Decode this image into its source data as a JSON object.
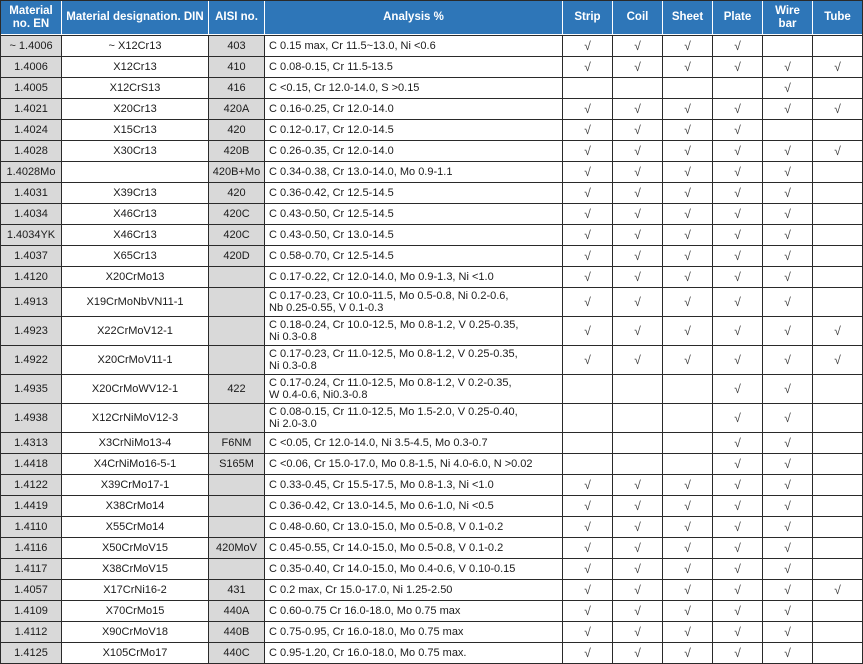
{
  "colors": {
    "header_bg": "#2e76b8",
    "header_text": "#ffffff",
    "gray_cell": "#d9d9d9",
    "border": "#2a2a2a",
    "check_color": "#3d3d3d"
  },
  "table": {
    "check_mark": "√",
    "columns": [
      {
        "slug": "material-no-en",
        "label": "Material no. EN"
      },
      {
        "slug": "designation-din",
        "label": "Material designation. DIN"
      },
      {
        "slug": "aisi-no",
        "label": "AISI no."
      },
      {
        "slug": "analysis",
        "label": "Analysis %"
      },
      {
        "slug": "strip",
        "label": "Strip"
      },
      {
        "slug": "coil",
        "label": "Coil"
      },
      {
        "slug": "sheet",
        "label": "Sheet"
      },
      {
        "slug": "plate",
        "label": "Plate"
      },
      {
        "slug": "wire-bar",
        "label": "Wire bar"
      },
      {
        "slug": "tube",
        "label": "Tube"
      }
    ],
    "rows": [
      {
        "en": "~ 1.4006",
        "din": "~ X12Cr13",
        "aisi": "403",
        "analysis": "C 0.15 max, Cr 11.5~13.0, Ni <0.6",
        "forms": [
          1,
          1,
          1,
          1,
          0,
          0
        ]
      },
      {
        "en": "1.4006",
        "din": "X12Cr13",
        "aisi": "410",
        "analysis": "C 0.08-0.15, Cr 11.5-13.5",
        "forms": [
          1,
          1,
          1,
          1,
          1,
          1
        ]
      },
      {
        "en": "1.4005",
        "din": "X12CrS13",
        "aisi": "416",
        "analysis": "C <0.15, Cr 12.0-14.0, S >0.15",
        "forms": [
          0,
          0,
          0,
          0,
          1,
          0
        ]
      },
      {
        "en": "1.4021",
        "din": "X20Cr13",
        "aisi": "420A",
        "analysis": "C 0.16-0.25, Cr 12.0-14.0",
        "forms": [
          1,
          1,
          1,
          1,
          1,
          1
        ]
      },
      {
        "en": "1.4024",
        "din": "X15Cr13",
        "aisi": "420",
        "analysis": "C 0.12-0.17, Cr 12.0-14.5",
        "forms": [
          1,
          1,
          1,
          1,
          0,
          0
        ]
      },
      {
        "en": "1.4028",
        "din": "X30Cr13",
        "aisi": "420B",
        "analysis": "C 0.26-0.35, Cr 12.0-14.0",
        "forms": [
          1,
          1,
          1,
          1,
          1,
          1
        ]
      },
      {
        "en": "1.4028Mo",
        "din": "",
        "aisi": "420B+Mo",
        "analysis": "C 0.34-0.38, Cr 13.0-14.0, Mo 0.9-1.1",
        "forms": [
          1,
          1,
          1,
          1,
          1,
          0
        ]
      },
      {
        "en": "1.4031",
        "din": "X39Cr13",
        "aisi": "420",
        "analysis": "C 0.36-0.42, Cr 12.5-14.5",
        "forms": [
          1,
          1,
          1,
          1,
          1,
          0
        ]
      },
      {
        "en": "1.4034",
        "din": "X46Cr13",
        "aisi": "420C",
        "analysis": "C 0.43-0.50, Cr 12.5-14.5",
        "forms": [
          1,
          1,
          1,
          1,
          1,
          0
        ]
      },
      {
        "en": "1.4034YK",
        "din": "X46Cr13",
        "aisi": "420C",
        "analysis": "C 0.43-0.50, Cr 13.0-14.5",
        "forms": [
          1,
          1,
          1,
          1,
          1,
          0
        ]
      },
      {
        "en": "1.4037",
        "din": "X65Cr13",
        "aisi": "420D",
        "analysis": "C 0.58-0.70, Cr 12.5-14.5",
        "forms": [
          1,
          1,
          1,
          1,
          1,
          0
        ]
      },
      {
        "en": "1.4120",
        "din": "X20CrMo13",
        "aisi": "",
        "analysis": "C 0.17-0.22, Cr 12.0-14.0, Mo 0.9-1.3, Ni <1.0",
        "forms": [
          1,
          1,
          1,
          1,
          1,
          0
        ]
      },
      {
        "en": "1.4913",
        "din": "X19CrMoNbVN11-1",
        "aisi": "",
        "analysis": "C 0.17-0.23, Cr 10.0-11.5, Mo 0.5-0.8, Ni 0.2-0.6,\nNb 0.25-0.55, V 0.1-0.3",
        "forms": [
          1,
          1,
          1,
          1,
          1,
          0
        ]
      },
      {
        "en": "1.4923",
        "din": "X22CrMoV12-1",
        "aisi": "",
        "analysis": "C 0.18-0.24, Cr 10.0-12.5, Mo 0.8-1.2,  V 0.25-0.35,\nNi 0.3-0.8",
        "forms": [
          1,
          1,
          1,
          1,
          1,
          1
        ]
      },
      {
        "en": "1.4922",
        "din": "X20CrMoV11-1",
        "aisi": "",
        "analysis": "C 0.17-0.23, Cr 11.0-12.5, Mo 0.8-1.2,  V 0.25-0.35,\nNi 0.3-0.8",
        "forms": [
          1,
          1,
          1,
          1,
          1,
          1
        ]
      },
      {
        "en": "1.4935",
        "din": "X20CrMoWV12-1",
        "aisi": "422",
        "analysis": "C 0.17-0.24, Cr 11.0-12.5, Mo 0.8-1.2,  V 0.2-0.35,\nW 0.4-0.6, Ni0.3-0.8",
        "forms": [
          0,
          0,
          0,
          1,
          1,
          0
        ]
      },
      {
        "en": "1.4938",
        "din": "X12CrNiMoV12-3",
        "aisi": "",
        "analysis": "C 0.08-0.15, Cr 11.0-12.5, Mo 1.5-2.0,  V 0.25-0.40,\nNi 2.0-3.0",
        "forms": [
          0,
          0,
          0,
          1,
          1,
          0
        ]
      },
      {
        "en": "1.4313",
        "din": "X3CrNiMo13-4",
        "aisi": "F6NM",
        "analysis": "C <0.05, Cr 12.0-14.0, Ni 3.5-4.5,  Mo 0.3-0.7",
        "forms": [
          0,
          0,
          0,
          1,
          1,
          0
        ]
      },
      {
        "en": "1.4418",
        "din": "X4CrNiMo16-5-1",
        "aisi": "S165M",
        "analysis": "C <0.06, Cr 15.0-17.0, Mo 0.8-1.5, Ni 4.0-6.0,  N >0.02",
        "forms": [
          0,
          0,
          0,
          1,
          1,
          0
        ]
      },
      {
        "en": "1.4122",
        "din": "X39CrMo17-1",
        "aisi": "",
        "analysis": "C 0.33-0.45, Cr 15.5-17.5, Mo 0.8-1.3, Ni <1.0",
        "forms": [
          1,
          1,
          1,
          1,
          1,
          0
        ]
      },
      {
        "en": "1.4419",
        "din": "X38CrMo14",
        "aisi": "",
        "analysis": "C 0.36-0.42, Cr 13.0-14.5, Mo 0.6-1.0, Ni <0.5",
        "forms": [
          1,
          1,
          1,
          1,
          1,
          0
        ]
      },
      {
        "en": "1.4110",
        "din": "X55CrMo14",
        "aisi": "",
        "analysis": "C 0.48-0.60, Cr 13.0-15.0, Mo 0.5-0.8, V 0.1-0.2",
        "forms": [
          1,
          1,
          1,
          1,
          1,
          0
        ]
      },
      {
        "en": "1.4116",
        "din": "X50CrMoV15",
        "aisi": "420MoV",
        "analysis": "C 0.45-0.55, Cr 14.0-15.0, Mo 0.5-0.8, V 0.1-0.2",
        "forms": [
          1,
          1,
          1,
          1,
          1,
          0
        ]
      },
      {
        "en": "1.4117",
        "din": "X38CrMoV15",
        "aisi": "",
        "analysis": "C 0.35-0.40, Cr 14.0-15.0, Mo 0.4-0.6,  V 0.10-0.15",
        "forms": [
          1,
          1,
          1,
          1,
          1,
          0
        ]
      },
      {
        "en": "1.4057",
        "din": "X17CrNi16-2",
        "aisi": "431",
        "analysis": "C 0.2 max, Cr 15.0-17.0, Ni 1.25-2.50",
        "forms": [
          1,
          1,
          1,
          1,
          1,
          1
        ]
      },
      {
        "en": "1.4109",
        "din": "X70CrMo15",
        "aisi": "440A",
        "analysis": "C 0.60-0.75 Cr 16.0-18.0, Mo 0.75 max",
        "forms": [
          1,
          1,
          1,
          1,
          1,
          0
        ]
      },
      {
        "en": "1.4112",
        "din": "X90CrMoV18",
        "aisi": "440B",
        "analysis": "C 0.75-0.95, Cr 16.0-18.0, Mo 0.75 max",
        "forms": [
          1,
          1,
          1,
          1,
          1,
          0
        ]
      },
      {
        "en": "1.4125",
        "din": "X105CrMo17",
        "aisi": "440C",
        "analysis": "C 0.95-1.20, Cr 16.0-18.0, Mo 0.75 max.",
        "forms": [
          1,
          1,
          1,
          1,
          1,
          0
        ]
      }
    ]
  }
}
